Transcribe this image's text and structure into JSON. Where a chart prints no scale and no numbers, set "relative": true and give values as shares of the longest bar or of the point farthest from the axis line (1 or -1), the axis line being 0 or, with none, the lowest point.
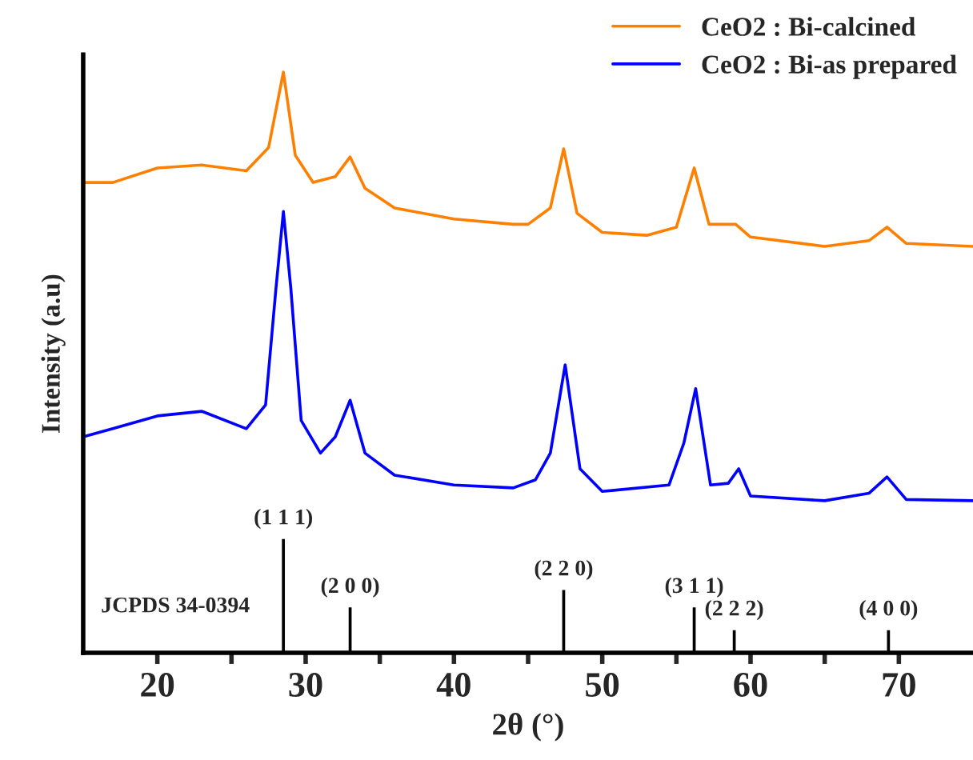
{
  "chart_data": {
    "type": "line",
    "relative": true,
    "xlabel": "2θ (°)",
    "ylabel": "Intensity (a.u)",
    "xlim": [
      15,
      75
    ],
    "xticks": [
      20,
      {
        "value": 25,
        "label": null
      },
      30,
      {
        "value": 35,
        "label": null
      },
      40,
      {
        "value": 45,
        "label": null
      },
      50,
      {
        "value": 55,
        "label": null
      },
      60,
      {
        "value": 65,
        "label": null
      },
      70
    ],
    "tick_labels": "x",
    "legend": "top right",
    "grid": false,
    "series": [
      {
        "name": "CeO2 : Bi-calcined",
        "color": "#ff8000",
        "x": [
          15,
          17,
          20,
          23,
          26,
          27.5,
          28.5,
          29.3,
          30.5,
          32,
          33,
          34,
          36,
          40,
          44,
          45,
          46.5,
          47.4,
          48.3,
          50,
          53,
          55,
          56.2,
          57.2,
          59,
          60,
          65,
          68,
          69.2,
          70.5,
          75
        ],
        "values": [
          0.81,
          0.81,
          0.835,
          0.84,
          0.83,
          0.87,
          1.0,
          0.857,
          0.81,
          0.82,
          0.854,
          0.8,
          0.766,
          0.747,
          0.738,
          0.738,
          0.766,
          0.868,
          0.757,
          0.724,
          0.719,
          0.733,
          0.835,
          0.738,
          0.738,
          0.716,
          0.7,
          0.71,
          0.733,
          0.705,
          0.7
        ]
      },
      {
        "name": "CeO2 : Bi-as prepared",
        "color": "#0000ff",
        "x": [
          15,
          17,
          20,
          23,
          26,
          27.3,
          28,
          28.5,
          29,
          29.7,
          31,
          32,
          33,
          34,
          36,
          40,
          44,
          45.5,
          46.5,
          47.5,
          48.5,
          50,
          54.5,
          55.5,
          56.3,
          57.3,
          58.5,
          59.2,
          60,
          65,
          68,
          69.2,
          70.5,
          75
        ],
        "values": [
          0.372,
          0.386,
          0.408,
          0.416,
          0.386,
          0.427,
          0.628,
          0.76,
          0.628,
          0.4,
          0.344,
          0.372,
          0.435,
          0.344,
          0.306,
          0.289,
          0.284,
          0.298,
          0.344,
          0.496,
          0.317,
          0.278,
          0.289,
          0.361,
          0.455,
          0.289,
          0.292,
          0.317,
          0.27,
          0.262,
          0.275,
          0.303,
          0.264,
          0.262
        ]
      },
      {
        "type": "bar",
        "color": "#000000",
        "x": [
          28.5,
          33.0,
          47.4,
          56.2,
          58.9,
          69.3
        ],
        "values": [
          0.198,
          0.08,
          0.11,
          0.08,
          0.041,
          0.041
        ]
      }
    ],
    "annotations": [
      {
        "text": "(1 1 1)",
        "x": 28.5,
        "y": 0.198
      },
      {
        "text": "(2 0 0)",
        "x": 33.0,
        "y": 0.08
      },
      {
        "text": "(2 2 0)",
        "x": 47.4,
        "y": 0.11
      },
      {
        "text": "(3 1 1)",
        "x": 56.2,
        "y": 0.08
      },
      {
        "text": "(2 2 2)",
        "x": 58.9,
        "y": 0.041
      },
      {
        "text": "(4 0 0)",
        "x": 69.3,
        "y": 0.041
      },
      "JCPDS 34-0394"
    ]
  }
}
